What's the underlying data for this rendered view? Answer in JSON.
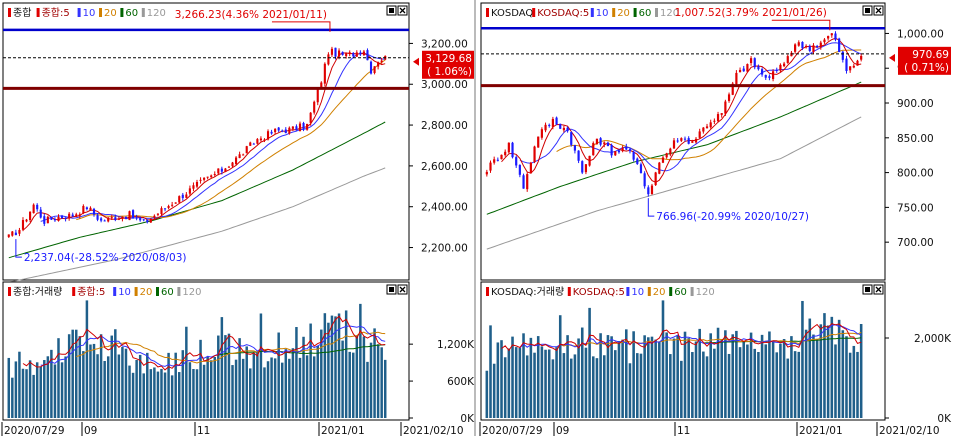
{
  "colors": {
    "up": "#e00000",
    "down": "#1a1aff",
    "ma5": "#d00000",
    "ma10": "#3333ff",
    "ma20": "#d08000",
    "ma60": "#006400",
    "ma120": "#999999",
    "hiline": "#0000cc",
    "loline": "#800000",
    "volume": "#1f5f8a",
    "pricebox": "#e00000"
  },
  "icons": {
    "square": "square-icon",
    "close": "close-icon"
  },
  "x_labels": [
    "2020/07/29",
    "09",
    "11",
    "2021/01",
    "2021/02/10"
  ],
  "chart_data": [
    {
      "type": "candlestick",
      "title": "종합",
      "legend": [
        "종합",
        "종합:5",
        "10",
        "20",
        "60",
        "120"
      ],
      "ylim": [
        2090,
        3300
      ],
      "yticks": [
        2200,
        2400,
        2600,
        2800,
        3000,
        3200
      ],
      "ytick_labels": [
        "2,200.00",
        "2,400.00",
        "2,600.00",
        "2,800.00",
        "3,000.00",
        "3,200.00"
      ],
      "current_value": "3,129.68",
      "current_change": "( 1.06%)",
      "current": 3129.68,
      "high_line": 3266.23,
      "low_line": 2980,
      "annotations": {
        "high": "3,266.23(4.36% 2021/01/11)",
        "low": "2,237.04(-28.52% 2020/08/03)"
      },
      "close_anchors": [
        [
          0,
          2250
        ],
        [
          3,
          2290
        ],
        [
          7,
          2410
        ],
        [
          10,
          2330
        ],
        [
          14,
          2350
        ],
        [
          18,
          2360
        ],
        [
          22,
          2400
        ],
        [
          26,
          2330
        ],
        [
          30,
          2350
        ],
        [
          34,
          2360
        ],
        [
          38,
          2320
        ],
        [
          42,
          2370
        ],
        [
          46,
          2420
        ],
        [
          50,
          2470
        ],
        [
          55,
          2530
        ],
        [
          60,
          2580
        ],
        [
          65,
          2650
        ],
        [
          70,
          2730
        ],
        [
          75,
          2770
        ],
        [
          80,
          2780
        ],
        [
          84,
          2800
        ],
        [
          88,
          3020
        ],
        [
          90,
          3160
        ],
        [
          92,
          3152
        ],
        [
          95,
          3140
        ],
        [
          100,
          3170
        ],
        [
          102,
          3070
        ],
        [
          104,
          3120
        ],
        [
          106,
          3130
        ]
      ],
      "ma60_anchors": [
        [
          0,
          2150
        ],
        [
          20,
          2250
        ],
        [
          40,
          2330
        ],
        [
          60,
          2430
        ],
        [
          80,
          2580
        ],
        [
          100,
          2760
        ],
        [
          106,
          2815
        ]
      ],
      "ma120_anchors": [
        [
          0,
          2030
        ],
        [
          30,
          2140
        ],
        [
          60,
          2280
        ],
        [
          80,
          2400
        ],
        [
          100,
          2550
        ],
        [
          106,
          2590
        ]
      ]
    },
    {
      "type": "candlestick",
      "title": "KOSDAQ",
      "legend": [
        "KOSDAQ",
        "KOSDAQ:5",
        "10",
        "20",
        "60",
        "120"
      ],
      "ylim": [
        660,
        1015
      ],
      "yticks": [
        700,
        750,
        800,
        850,
        900,
        950,
        1000
      ],
      "ytick_labels": [
        "700.00",
        "750.00",
        "800.00",
        "850.00",
        "900.00",
        "950.00",
        "1,000.00"
      ],
      "current_value": "970.69",
      "current_change": "( 0.71%)",
      "current": 970.69,
      "high_line": 1007.52,
      "low_line": 925,
      "annotations": {
        "high": "1,007.52(3.79% 2021/01/26)",
        "low": "766.96(-20.99% 2020/10/27)"
      },
      "close_anchors": [
        [
          0,
          805
        ],
        [
          6,
          840
        ],
        [
          10,
          780
        ],
        [
          14,
          855
        ],
        [
          18,
          875
        ],
        [
          22,
          860
        ],
        [
          26,
          800
        ],
        [
          30,
          850
        ],
        [
          34,
          830
        ],
        [
          38,
          835
        ],
        [
          42,
          800
        ],
        [
          44,
          770
        ],
        [
          47,
          815
        ],
        [
          52,
          850
        ],
        [
          56,
          845
        ],
        [
          60,
          870
        ],
        [
          64,
          885
        ],
        [
          68,
          940
        ],
        [
          72,
          960
        ],
        [
          76,
          935
        ],
        [
          80,
          950
        ],
        [
          84,
          985
        ],
        [
          88,
          980
        ],
        [
          92,
          990
        ],
        [
          94,
          1000
        ],
        [
          96,
          975
        ],
        [
          98,
          945
        ],
        [
          100,
          955
        ],
        [
          102,
          970
        ]
      ],
      "ma60_anchors": [
        [
          0,
          740
        ],
        [
          20,
          780
        ],
        [
          40,
          815
        ],
        [
          60,
          840
        ],
        [
          80,
          880
        ],
        [
          102,
          930
        ]
      ],
      "ma120_anchors": [
        [
          0,
          690
        ],
        [
          30,
          745
        ],
        [
          60,
          790
        ],
        [
          80,
          820
        ],
        [
          102,
          880
        ]
      ]
    },
    {
      "type": "bar",
      "title": "종합:거래량",
      "legend": [
        "종합:거래량",
        "종합:5",
        "10",
        "20",
        "60",
        "120"
      ],
      "ylim": [
        0,
        1950000
      ],
      "yticks": [
        0,
        600000,
        1200000
      ],
      "ytick_labels": [
        "0K",
        "600K",
        "1,200K"
      ],
      "volume_anchors": [
        [
          0,
          850000
        ],
        [
          10,
          900000
        ],
        [
          20,
          1300000
        ],
        [
          30,
          950000
        ],
        [
          40,
          880000
        ],
        [
          50,
          950000
        ],
        [
          60,
          1150000
        ],
        [
          70,
          1050000
        ],
        [
          80,
          1200000
        ],
        [
          88,
          1350000
        ],
        [
          95,
          1450000
        ],
        [
          100,
          1250000
        ],
        [
          106,
          1000000
        ]
      ]
    },
    {
      "type": "bar",
      "title": "KOSDAQ:거래량",
      "legend": [
        "KOSDAQ:거래량",
        "KOSDAQ:5",
        "10",
        "20",
        "60",
        "120"
      ],
      "ylim": [
        0,
        3000000
      ],
      "yticks": [
        0,
        2000000
      ],
      "ytick_labels": [
        "0K",
        "2,000K"
      ],
      "volume_anchors": [
        [
          0,
          1500000
        ],
        [
          10,
          1700000
        ],
        [
          20,
          2000000
        ],
        [
          30,
          1850000
        ],
        [
          40,
          1800000
        ],
        [
          50,
          1750000
        ],
        [
          60,
          1900000
        ],
        [
          70,
          1850000
        ],
        [
          80,
          1800000
        ],
        [
          88,
          2000000
        ],
        [
          95,
          2200000
        ],
        [
          100,
          2000000
        ],
        [
          102,
          1900000
        ]
      ]
    }
  ]
}
